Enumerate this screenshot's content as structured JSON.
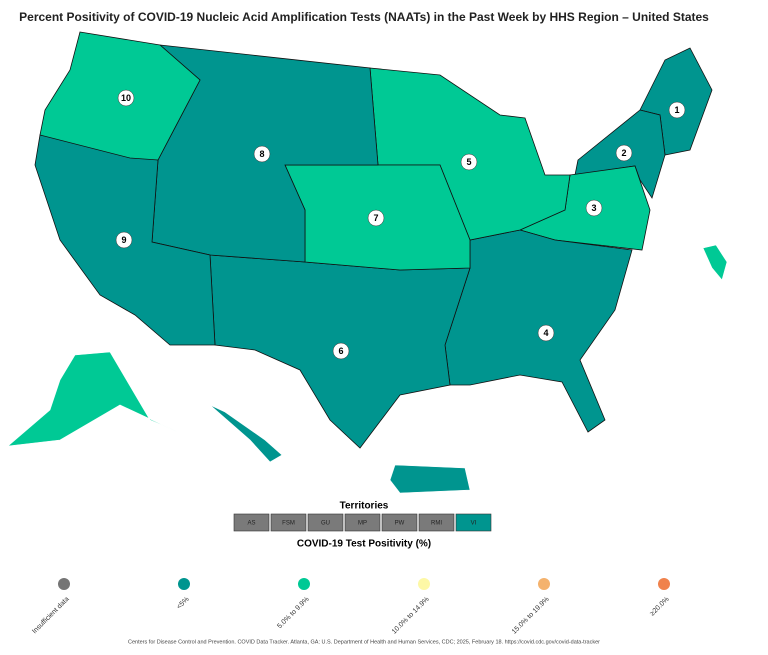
{
  "title": "Percent Positivity of COVID-19 Nucleic Acid Amplification Tests (NAATs) in the Past Week by HHS Region – United States",
  "regions": [
    {
      "label": "1",
      "color": "#00958f"
    },
    {
      "label": "2",
      "color": "#00958f"
    },
    {
      "label": "3",
      "color": "#00c995"
    },
    {
      "label": "4",
      "color": "#00958f"
    },
    {
      "label": "5",
      "color": "#00c995"
    },
    {
      "label": "6",
      "color": "#00958f"
    },
    {
      "label": "7",
      "color": "#00c995"
    },
    {
      "label": "8",
      "color": "#00958f"
    },
    {
      "label": "9",
      "color": "#00958f"
    },
    {
      "label": "10",
      "color": "#00c995"
    }
  ],
  "territories": {
    "title": "Territories",
    "items": [
      {
        "label": "AS",
        "color": "#7a7a7a"
      },
      {
        "label": "FSM",
        "color": "#7a7a7a"
      },
      {
        "label": "GU",
        "color": "#7a7a7a"
      },
      {
        "label": "MP",
        "color": "#7a7a7a"
      },
      {
        "label": "PW",
        "color": "#7a7a7a"
      },
      {
        "label": "RMI",
        "color": "#7a7a7a"
      },
      {
        "label": "VI",
        "color": "#00958f"
      }
    ]
  },
  "legend": {
    "title": "COVID-19 Test Positivity (%)",
    "items": [
      {
        "label": "Insufficient data",
        "color": "#757575"
      },
      {
        "label": "<5%",
        "color": "#00958f"
      },
      {
        "label": "5.0% to 9.9%",
        "color": "#00c995"
      },
      {
        "label": "10.0% to 14.9%",
        "color": "#fdf8a6"
      },
      {
        "label": "15.0% to 19.9%",
        "color": "#f4b26d"
      },
      {
        "label": "≥20.0%",
        "color": "#f0824c"
      }
    ]
  },
  "source": "Centers for Disease Control and Prevention. COVID Data Tracker. Atlanta, GA: U.S. Department of Health and Human Services, CDC; 2025, February 18. https://covid.cdc.gov/covid-data-tracker"
}
